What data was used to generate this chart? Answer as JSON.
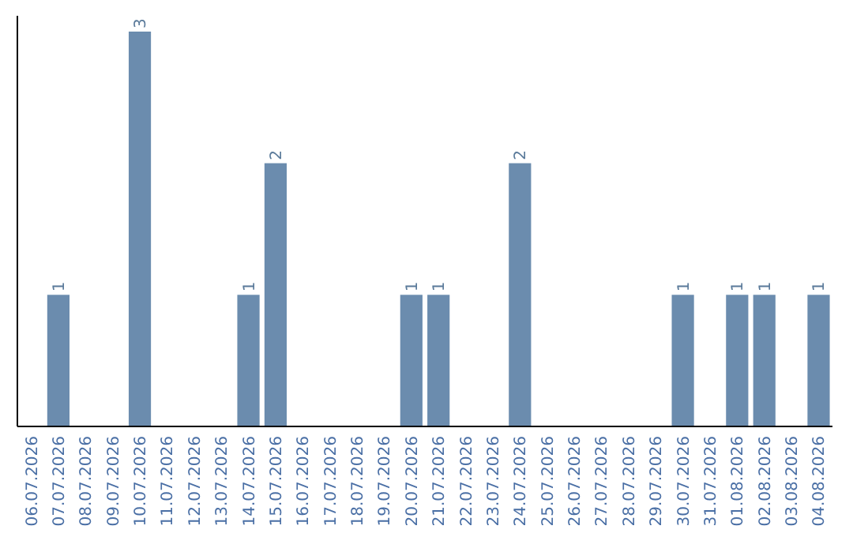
{
  "chart_data": {
    "type": "bar",
    "categories": [
      "06.07.2026",
      "07.07.2026",
      "08.07.2026",
      "09.07.2026",
      "10.07.2026",
      "11.07.2026",
      "12.07.2026",
      "13.07.2026",
      "14.07.2026",
      "15.07.2026",
      "16.07.2026",
      "17.07.2026",
      "18.07.2026",
      "19.07.2026",
      "20.07.2026",
      "21.07.2026",
      "22.07.2026",
      "23.07.2026",
      "24.07.2026",
      "25.07.2026",
      "26.07.2026",
      "27.07.2026",
      "28.07.2026",
      "29.07.2026",
      "30.07.2026",
      "31.07.2026",
      "01.08.2026",
      "02.08.2026",
      "03.08.2026",
      "04.08.2026"
    ],
    "values": [
      0,
      1,
      0,
      0,
      3,
      0,
      0,
      0,
      1,
      2,
      0,
      0,
      0,
      0,
      1,
      1,
      0,
      0,
      2,
      0,
      0,
      0,
      0,
      0,
      1,
      0,
      1,
      1,
      0,
      1
    ],
    "value_labels": [
      null,
      "1",
      null,
      null,
      "3",
      null,
      null,
      null,
      "1",
      "2",
      null,
      null,
      null,
      null,
      "1",
      "1",
      null,
      null,
      "2",
      null,
      null,
      null,
      null,
      null,
      "1",
      null,
      "1",
      "1",
      null,
      "1"
    ],
    "color": "#6b8cae",
    "tick_labels": "x"
  }
}
